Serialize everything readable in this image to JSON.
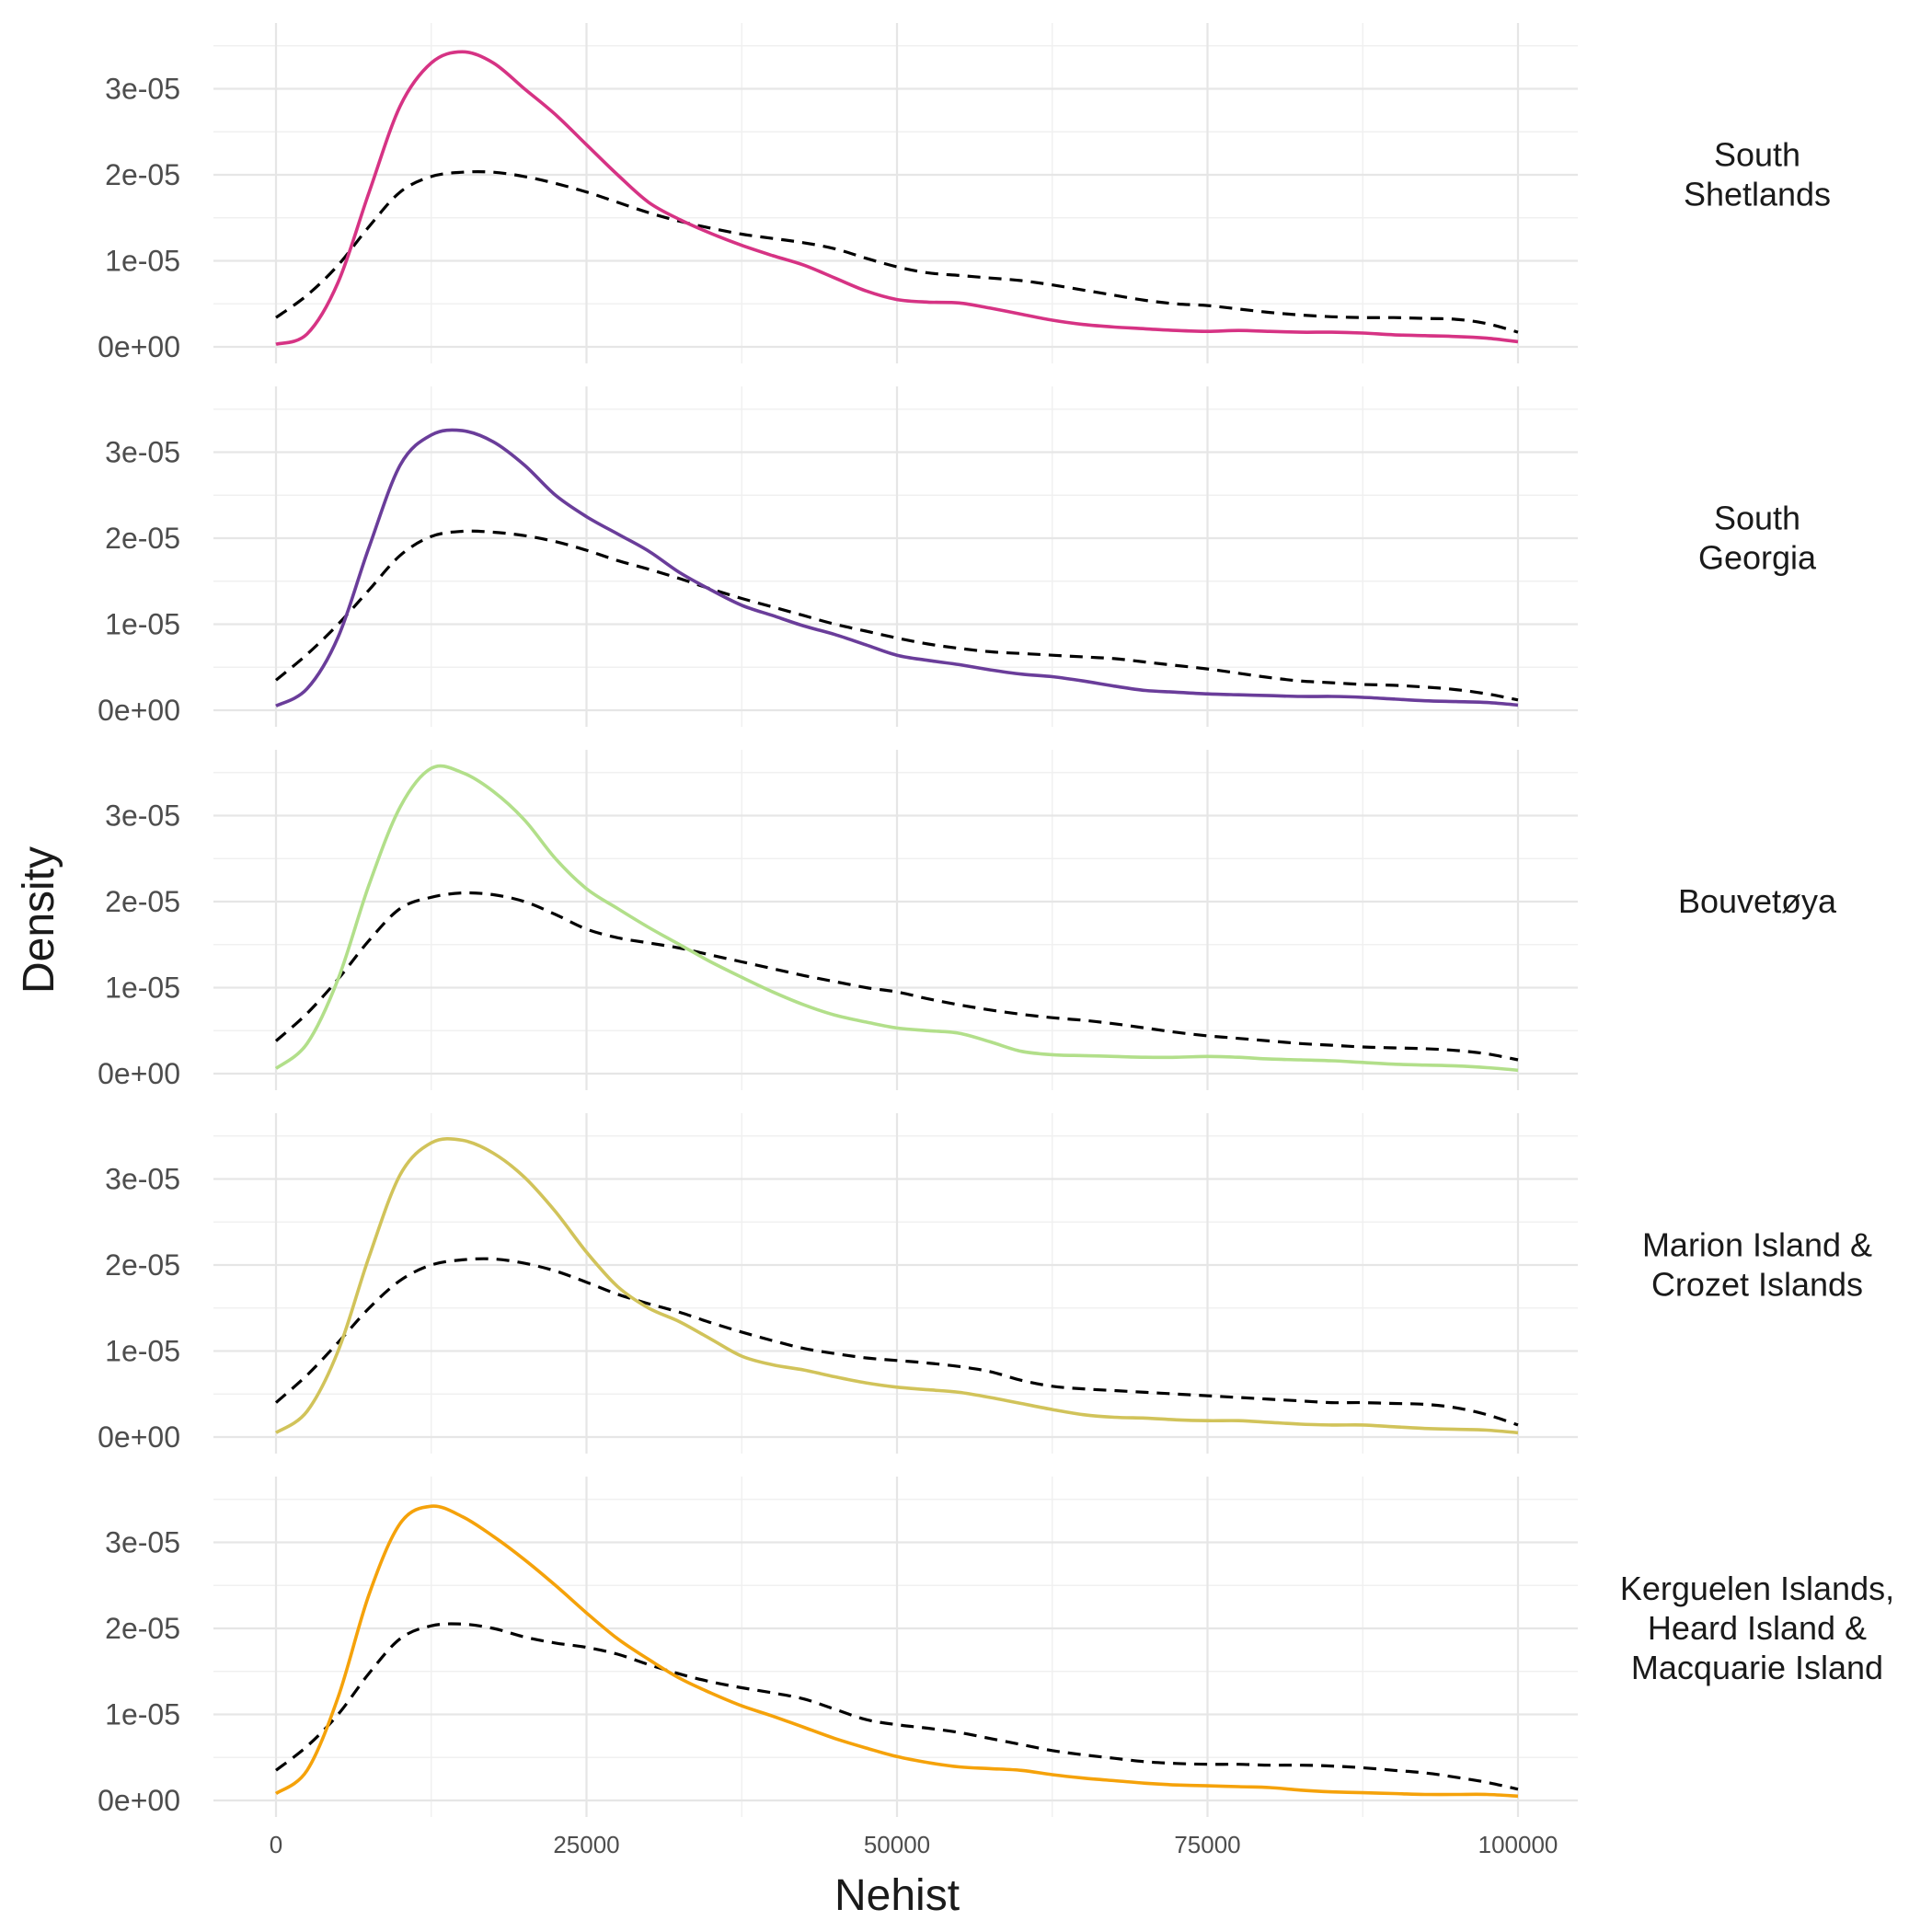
{
  "chart_data": {
    "type": "line",
    "xlabel": "Nehist",
    "ylabel": "Density",
    "xlim": [
      0,
      100000
    ],
    "ylim": [
      0,
      3.6e-05
    ],
    "x_ticks": [
      0,
      25000,
      50000,
      75000,
      100000
    ],
    "x_tick_labels": [
      "0",
      "25000",
      "50000",
      "75000",
      "100000"
    ],
    "y_ticks": [
      0,
      1e-05,
      2e-05,
      3e-05
    ],
    "y_tick_labels": [
      "0e+00",
      "1e-05",
      "2e-05",
      "3e-05"
    ],
    "grid": true,
    "reference_line_style": "dashed black",
    "panels": [
      {
        "label": "South\nShetlands",
        "color": "#d63384",
        "x": [
          0,
          2500,
          5000,
          7500,
          10000,
          12500,
          15000,
          17500,
          20000,
          22500,
          25000,
          27500,
          30000,
          32500,
          35000,
          37500,
          40000,
          42500,
          45000,
          47500,
          50000,
          52500,
          55000,
          57500,
          60000,
          62500,
          65000,
          67500,
          70000,
          72500,
          75000,
          77500,
          80000,
          82500,
          85000,
          87500,
          90000,
          92500,
          95000,
          97500,
          100000
        ],
        "values": [
          3e-07,
          1.5e-06,
          7.5e-06,
          1.8e-05,
          2.8e-05,
          3.3e-05,
          3.43e-05,
          3.3e-05,
          3e-05,
          2.7e-05,
          2.35e-05,
          2e-05,
          1.68e-05,
          1.48e-05,
          1.32e-05,
          1.18e-05,
          1.06e-05,
          9.5e-06,
          8e-06,
          6.5e-06,
          5.5e-06,
          5.2e-06,
          5.1e-06,
          4.5e-06,
          3.8e-06,
          3.1e-06,
          2.6e-06,
          2.3e-06,
          2.1e-06,
          1.9e-06,
          1.8e-06,
          1.9e-06,
          1.8e-06,
          1.7e-06,
          1.7e-06,
          1.6e-06,
          1.4e-06,
          1.3e-06,
          1.2e-06,
          1e-06,
          6e-07
        ],
        "reference": [
          3.4e-06,
          6e-06,
          9.5e-06,
          1.4e-05,
          1.8e-05,
          1.98e-05,
          2.03e-05,
          2.03e-05,
          1.98e-05,
          1.9e-05,
          1.8e-05,
          1.68e-05,
          1.56e-05,
          1.46e-05,
          1.38e-05,
          1.31e-05,
          1.26e-05,
          1.21e-05,
          1.14e-05,
          1.03e-05,
          9.3e-06,
          8.6e-06,
          8.3e-06,
          8e-06,
          7.7e-06,
          7.2e-06,
          6.6e-06,
          6e-06,
          5.4e-06,
          5e-06,
          4.8e-06,
          4.4e-06,
          4e-06,
          3.7e-06,
          3.5e-06,
          3.4e-06,
          3.4e-06,
          3.3e-06,
          3.2e-06,
          2.7e-06,
          1.7e-06
        ]
      },
      {
        "label": "South\nGeorgia",
        "color": "#6a3d9a",
        "x": [
          0,
          2500,
          5000,
          7500,
          10000,
          12500,
          15000,
          17500,
          20000,
          22500,
          25000,
          27500,
          30000,
          32500,
          35000,
          37500,
          40000,
          42500,
          45000,
          47500,
          50000,
          52500,
          55000,
          57500,
          60000,
          62500,
          65000,
          67500,
          70000,
          72500,
          75000,
          77500,
          80000,
          82500,
          85000,
          87500,
          90000,
          92500,
          95000,
          97500,
          100000
        ],
        "values": [
          5e-07,
          2.5e-06,
          8.5e-06,
          1.9e-05,
          2.85e-05,
          3.2e-05,
          3.25e-05,
          3.12e-05,
          2.85e-05,
          2.5e-05,
          2.25e-05,
          2.05e-05,
          1.85e-05,
          1.6e-05,
          1.4e-05,
          1.22e-05,
          1.1e-05,
          9.8e-06,
          8.8e-06,
          7.6e-06,
          6.4e-06,
          5.8e-06,
          5.3e-06,
          4.7e-06,
          4.2e-06,
          3.9e-06,
          3.4e-06,
          2.8e-06,
          2.3e-06,
          2.1e-06,
          1.9e-06,
          1.8e-06,
          1.7e-06,
          1.6e-06,
          1.6e-06,
          1.5e-06,
          1.3e-06,
          1.1e-06,
          1e-06,
          9e-07,
          6e-07
        ],
        "reference": [
          3.5e-06,
          6.5e-06,
          1e-05,
          1.4e-05,
          1.8e-05,
          2.02e-05,
          2.08e-05,
          2.07e-05,
          2.03e-05,
          1.96e-05,
          1.86e-05,
          1.74e-05,
          1.64e-05,
          1.53e-05,
          1.41e-05,
          1.3e-05,
          1.2e-05,
          1.1e-05,
          1e-05,
          9.2e-06,
          8.4e-06,
          7.7e-06,
          7.2e-06,
          6.8e-06,
          6.6e-06,
          6.4e-06,
          6.2e-06,
          6e-06,
          5.6e-06,
          5.2e-06,
          4.8e-06,
          4.3e-06,
          3.8e-06,
          3.4e-06,
          3.2e-06,
          3e-06,
          2.9e-06,
          2.7e-06,
          2.4e-06,
          1.9e-06,
          1.2e-06
        ]
      },
      {
        "label": "Bouvetøya",
        "color": "#b2df8a",
        "x": [
          0,
          2500,
          5000,
          7500,
          10000,
          12500,
          15000,
          17500,
          20000,
          22500,
          25000,
          27500,
          30000,
          32500,
          35000,
          37500,
          40000,
          42500,
          45000,
          47500,
          50000,
          52500,
          55000,
          57500,
          60000,
          62500,
          65000,
          67500,
          70000,
          72500,
          75000,
          77500,
          80000,
          82500,
          85000,
          87500,
          90000,
          92500,
          95000,
          97500,
          100000
        ],
        "values": [
          6e-07,
          3.5e-06,
          1.1e-05,
          2.2e-05,
          3.1e-05,
          3.55e-05,
          3.5e-05,
          3.28e-05,
          2.95e-05,
          2.5e-05,
          2.15e-05,
          1.92e-05,
          1.7e-05,
          1.5e-05,
          1.3e-05,
          1.12e-05,
          9.5e-06,
          8e-06,
          6.8e-06,
          6e-06,
          5.3e-06,
          5e-06,
          4.7e-06,
          3.7e-06,
          2.6e-06,
          2.2e-06,
          2.1e-06,
          2e-06,
          1.9e-06,
          1.9e-06,
          2e-06,
          1.9e-06,
          1.7e-06,
          1.6e-06,
          1.5e-06,
          1.3e-06,
          1.1e-06,
          1e-06,
          9e-07,
          7e-07,
          4e-07
        ],
        "reference": [
          3.8e-06,
          7e-06,
          1.1e-05,
          1.55e-05,
          1.92e-05,
          2.05e-05,
          2.1e-05,
          2.08e-05,
          2e-05,
          1.85e-05,
          1.68e-05,
          1.58e-05,
          1.52e-05,
          1.46e-05,
          1.38e-05,
          1.3e-05,
          1.22e-05,
          1.14e-05,
          1.07e-05,
          1e-05,
          9.5e-06,
          8.7e-06,
          8e-06,
          7.4e-06,
          6.9e-06,
          6.5e-06,
          6.2e-06,
          5.8e-06,
          5.3e-06,
          4.8e-06,
          4.4e-06,
          4.1e-06,
          3.8e-06,
          3.5e-06,
          3.3e-06,
          3.1e-06,
          3e-06,
          2.9e-06,
          2.7e-06,
          2.3e-06,
          1.6e-06
        ]
      },
      {
        "label": "Marion Island &\nCrozet Islands",
        "color": "#d1c35a",
        "x": [
          0,
          2500,
          5000,
          7500,
          10000,
          12500,
          15000,
          17500,
          20000,
          22500,
          25000,
          27500,
          30000,
          32500,
          35000,
          37500,
          40000,
          42500,
          45000,
          47500,
          50000,
          52500,
          55000,
          57500,
          60000,
          62500,
          65000,
          67500,
          70000,
          72500,
          75000,
          77500,
          80000,
          82500,
          85000,
          87500,
          90000,
          92500,
          95000,
          97500,
          100000
        ],
        "values": [
          5e-07,
          3e-06,
          1e-05,
          2.1e-05,
          3.05e-05,
          3.42e-05,
          3.45e-05,
          3.3e-05,
          3.02e-05,
          2.62e-05,
          2.15e-05,
          1.75e-05,
          1.5e-05,
          1.34e-05,
          1.14e-05,
          9.4e-06,
          8.4e-06,
          7.8e-06,
          7e-06,
          6.3e-06,
          5.8e-06,
          5.5e-06,
          5.2e-06,
          4.6e-06,
          3.9e-06,
          3.2e-06,
          2.6e-06,
          2.3e-06,
          2.2e-06,
          2e-06,
          1.9e-06,
          1.9e-06,
          1.7e-06,
          1.5e-06,
          1.4e-06,
          1.4e-06,
          1.2e-06,
          1e-06,
          9e-07,
          8e-07,
          5e-07
        ],
        "reference": [
          4e-06,
          7.2e-06,
          1.1e-05,
          1.5e-05,
          1.82e-05,
          2e-05,
          2.06e-05,
          2.07e-05,
          2.02e-05,
          1.93e-05,
          1.8e-05,
          1.66e-05,
          1.55e-05,
          1.45e-05,
          1.33e-05,
          1.22e-05,
          1.12e-05,
          1.03e-05,
          9.7e-06,
          9.2e-06,
          8.9e-06,
          8.6e-06,
          8.2e-06,
          7.6e-06,
          6.6e-06,
          5.9e-06,
          5.6e-06,
          5.4e-06,
          5.2e-06,
          5e-06,
          4.8e-06,
          4.6e-06,
          4.4e-06,
          4.2e-06,
          4e-06,
          4e-06,
          3.9e-06,
          3.8e-06,
          3.4e-06,
          2.6e-06,
          1.4e-06
        ]
      },
      {
        "label": "Kerguelen Islands,\nHeard Island &\nMacquarie Island",
        "color": "#f5a20a",
        "x": [
          0,
          2500,
          5000,
          7500,
          10000,
          12500,
          15000,
          17500,
          20000,
          22500,
          25000,
          27500,
          30000,
          32500,
          35000,
          37500,
          40000,
          42500,
          45000,
          47500,
          50000,
          52500,
          55000,
          57500,
          60000,
          62500,
          65000,
          67500,
          70000,
          72500,
          75000,
          77500,
          80000,
          82500,
          85000,
          87500,
          90000,
          92500,
          95000,
          97500,
          100000
        ],
        "values": [
          8e-07,
          3.5e-06,
          1.2e-05,
          2.4e-05,
          3.22e-05,
          3.42e-05,
          3.3e-05,
          3.07e-05,
          2.8e-05,
          2.5e-05,
          2.18e-05,
          1.88e-05,
          1.64e-05,
          1.42e-05,
          1.25e-05,
          1.1e-05,
          9.8e-06,
          8.5e-06,
          7.2e-06,
          6.1e-06,
          5.1e-06,
          4.4e-06,
          3.9e-06,
          3.7e-06,
          3.5e-06,
          3e-06,
          2.6e-06,
          2.3e-06,
          2e-06,
          1.8e-06,
          1.7e-06,
          1.6e-06,
          1.5e-06,
          1.2e-06,
          1e-06,
          9e-07,
          8e-07,
          7e-07,
          7e-07,
          7e-07,
          5e-07
        ],
        "reference": [
          3.5e-06,
          6.3e-06,
          1e-05,
          1.48e-05,
          1.88e-05,
          2.03e-05,
          2.05e-05,
          2e-05,
          1.9e-05,
          1.83e-05,
          1.78e-05,
          1.7e-05,
          1.58e-05,
          1.47e-05,
          1.38e-05,
          1.31e-05,
          1.25e-05,
          1.18e-05,
          1.06e-05,
          9.4e-06,
          8.8e-06,
          8.4e-06,
          7.9e-06,
          7.2e-06,
          6.5e-06,
          5.8e-06,
          5.3e-06,
          4.9e-06,
          4.5e-06,
          4.3e-06,
          4.2e-06,
          4.2e-06,
          4.1e-06,
          4.1e-06,
          4e-06,
          3.8e-06,
          3.5e-06,
          3.2e-06,
          2.7e-06,
          2.1e-06,
          1.3e-06
        ]
      }
    ]
  }
}
